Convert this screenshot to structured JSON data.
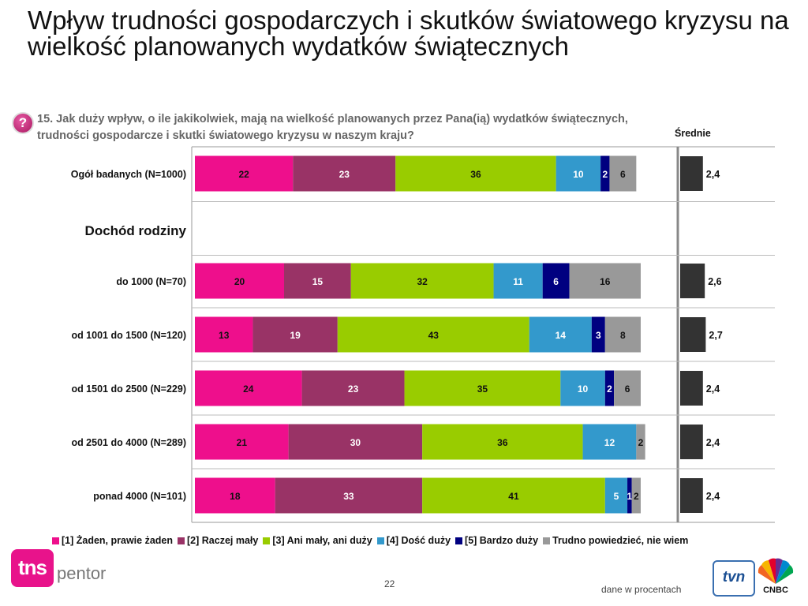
{
  "title": "Wpływ trudności gospodarczych i skutków światowego kryzysu na wielkość planowanych wydatków świątecznych",
  "question": "15. Jak duży wpływ, o ile jakikolwiek, mają na wielkość planowanych przez Pana(ią) wydatków świątecznych, trudności gospodarcze i skutki światowego kryzysu w naszym kraju?",
  "question_icon": "?",
  "averages_label": "Średnie",
  "footer": {
    "page_number": "22",
    "note": "dane w procentach",
    "brand_left": "tns",
    "brand_left_suffix": "pentor",
    "brand_right_1": "tvn",
    "brand_right_2": "CNBC"
  },
  "colors": {
    "s1": "#ee0f8c",
    "s2": "#993366",
    "s3": "#99cc00",
    "s4": "#3399cc",
    "s5": "#000080",
    "s6": "#999999",
    "avg": "#333333"
  },
  "chart_data": {
    "type": "bar",
    "orientation": "horizontal",
    "stacked": true,
    "xlim": [
      0,
      100
    ],
    "categories": [
      "Ogół badanych (N=1000)",
      "Dochód rodziny",
      "do 1000 (N=70)",
      "od 1001 do 1500 (N=120)",
      "od 1501 do 2500 (N=229)",
      "od 2501 do 4000 (N=289)",
      "ponad 4000 (N=101)"
    ],
    "section_header_index": 1,
    "series": [
      {
        "name": "[1] Żaden, prawie żaden",
        "values": [
          22,
          null,
          20,
          13,
          24,
          21,
          18
        ]
      },
      {
        "name": "[2] Raczej mały",
        "values": [
          23,
          null,
          15,
          19,
          23,
          30,
          33
        ]
      },
      {
        "name": "[3] Ani mały, ani duży",
        "values": [
          36,
          null,
          32,
          43,
          35,
          36,
          41
        ]
      },
      {
        "name": "[4] Dość duży",
        "values": [
          10,
          null,
          11,
          14,
          10,
          12,
          5
        ]
      },
      {
        "name": "[5] Bardzo duży",
        "values": [
          2,
          null,
          6,
          3,
          2,
          null,
          1
        ]
      },
      {
        "name": "Trudno powiedzieć, nie wiem",
        "values": [
          6,
          null,
          16,
          8,
          6,
          2,
          2
        ]
      }
    ],
    "averages": {
      "values": [
        2.4,
        null,
        2.6,
        2.7,
        2.4,
        2.4,
        2.4
      ],
      "labels": [
        "2,4",
        "",
        "2,6",
        "2,7",
        "2,4",
        "2,4",
        "2,4"
      ],
      "xlim": [
        0,
        5
      ]
    }
  }
}
